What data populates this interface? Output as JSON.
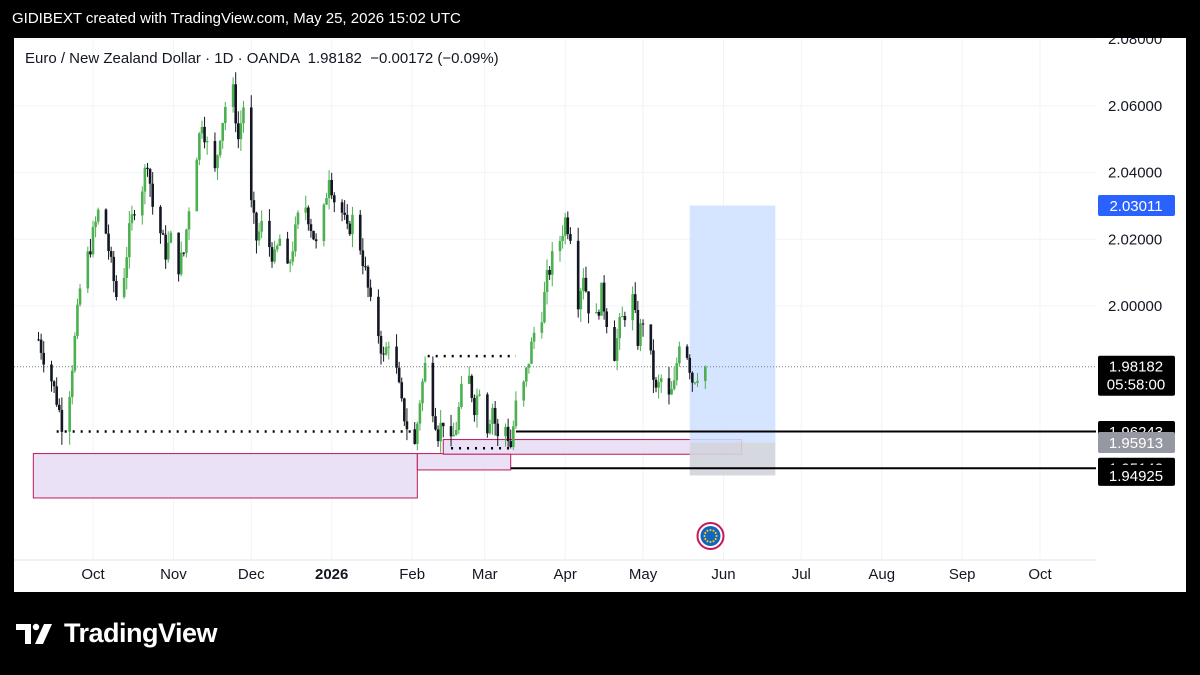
{
  "header": {
    "text": "GIDIBEXT created with TradingView.com, May 25, 2026 15:02 UTC"
  },
  "symbol": {
    "name": "Euro / New Zealand Dollar",
    "interval": "1D",
    "exchange": "OANDA",
    "last": "1.98182",
    "change": "−0.00172",
    "change_pct": "(−0.09%)"
  },
  "brand": {
    "name": "TradingView"
  },
  "colors": {
    "up": "#4caf50",
    "down": "#131722",
    "target_box": "#cfe0ff",
    "target_tag": "#2962ff",
    "zone": "#e8dcf5",
    "zone_border": "#c2185b",
    "neutral_box": "#d1d4dc"
  },
  "chart_data": {
    "type": "candlestick",
    "title": "Euro / New Zealand Dollar · 1D · OANDA",
    "ylim": [
      1.935,
      2.08
    ],
    "y_ticks": [
      "2.08000",
      "2.06000",
      "2.04000",
      "2.02000",
      "2.00000"
    ],
    "x_ticks": [
      "Oct",
      "Nov",
      "Dec",
      "2026",
      "Feb",
      "Mar",
      "Apr",
      "May",
      "Jun",
      "Jul",
      "Aug",
      "Sep",
      "Oct"
    ],
    "x_ticks_bold": [
      "2026"
    ],
    "price_tags": [
      {
        "label": "1.98182",
        "sub": "05:58:00",
        "value": 1.98182,
        "style": "dark"
      },
      {
        "label": "2.03011",
        "value": 2.03011,
        "style": "blue"
      },
      {
        "label": "1.96243",
        "value": 1.96243,
        "style": "dark"
      },
      {
        "label": "1.95913",
        "value": 1.95913,
        "style": "grey"
      },
      {
        "label": "1.95142",
        "value": 1.95142,
        "style": "dark"
      },
      {
        "label": "1.94925",
        "value": 1.94925,
        "style": "dark"
      }
    ],
    "close_path": [
      [
        "2025-09-10",
        1.99
      ],
      [
        "2025-09-12",
        1.985
      ],
      [
        "2025-09-15",
        1.978
      ],
      [
        "2025-09-17",
        1.972
      ],
      [
        "2025-09-19",
        1.965
      ],
      [
        "2025-09-22",
        1.975
      ],
      [
        "2025-09-24",
        1.99
      ],
      [
        "2025-09-26",
        2.005
      ],
      [
        "2025-09-30",
        2.018
      ],
      [
        "2025-10-03",
        2.028
      ],
      [
        "2025-10-06",
        2.022
      ],
      [
        "2025-10-08",
        2.012
      ],
      [
        "2025-10-10",
        2.003
      ],
      [
        "2025-10-13",
        2.01
      ],
      [
        "2025-10-15",
        2.022
      ],
      [
        "2025-10-17",
        2.03
      ],
      [
        "2025-10-20",
        2.036
      ],
      [
        "2025-10-22",
        2.044
      ],
      [
        "2025-10-24",
        2.03
      ],
      [
        "2025-10-27",
        2.022
      ],
      [
        "2025-10-29",
        2.016
      ],
      [
        "2025-10-31",
        2.02
      ],
      [
        "2025-11-03",
        2.012
      ],
      [
        "2025-11-05",
        2.016
      ],
      [
        "2025-11-07",
        2.03
      ],
      [
        "2025-11-10",
        2.046
      ],
      [
        "2025-11-12",
        2.056
      ],
      [
        "2025-11-14",
        2.048
      ],
      [
        "2025-11-17",
        2.04
      ],
      [
        "2025-11-19",
        2.052
      ],
      [
        "2025-11-21",
        2.06
      ],
      [
        "2025-11-24",
        2.064
      ],
      [
        "2025-11-26",
        2.05
      ],
      [
        "2025-11-28",
        2.06
      ],
      [
        "2025-12-01",
        2.03
      ],
      [
        "2025-12-03",
        2.02
      ],
      [
        "2025-12-05",
        2.024
      ],
      [
        "2025-12-08",
        2.018
      ],
      [
        "2025-12-10",
        2.014
      ],
      [
        "2025-12-12",
        2.02
      ],
      [
        "2025-12-15",
        2.01
      ],
      [
        "2025-12-17",
        2.018
      ],
      [
        "2025-12-19",
        2.026
      ],
      [
        "2025-12-22",
        2.03
      ],
      [
        "2025-12-24",
        2.024
      ],
      [
        "2025-12-26",
        2.018
      ],
      [
        "2025-12-29",
        2.028
      ],
      [
        "2025-12-31",
        2.04
      ],
      [
        "2026-01-02",
        2.032
      ],
      [
        "2026-01-05",
        2.028
      ],
      [
        "2026-01-07",
        2.022
      ],
      [
        "2026-01-09",
        2.026
      ],
      [
        "2026-01-12",
        2.018
      ],
      [
        "2026-01-14",
        2.01
      ],
      [
        "2026-01-16",
        2.0
      ],
      [
        "2026-01-19",
        1.992
      ],
      [
        "2026-01-21",
        1.984
      ],
      [
        "2026-01-23",
        1.99
      ],
      [
        "2026-01-26",
        1.98
      ],
      [
        "2026-01-28",
        1.97
      ],
      [
        "2026-01-30",
        1.964
      ],
      [
        "2026-02-02",
        1.958
      ],
      [
        "2026-02-04",
        1.972
      ],
      [
        "2026-02-06",
        1.982
      ],
      [
        "2026-02-09",
        1.97
      ],
      [
        "2026-02-11",
        1.962
      ],
      [
        "2026-02-13",
        1.966
      ],
      [
        "2026-02-16",
        1.958
      ],
      [
        "2026-02-18",
        1.964
      ],
      [
        "2026-02-20",
        1.974
      ],
      [
        "2026-02-23",
        1.978
      ],
      [
        "2026-02-25",
        1.97
      ],
      [
        "2026-02-27",
        1.976
      ],
      [
        "2026-03-02",
        1.964
      ],
      [
        "2026-03-04",
        1.97
      ],
      [
        "2026-03-06",
        1.96
      ],
      [
        "2026-03-09",
        1.964
      ],
      [
        "2026-03-11",
        1.958
      ],
      [
        "2026-03-13",
        1.97
      ],
      [
        "2026-03-16",
        1.976
      ],
      [
        "2026-03-18",
        1.984
      ],
      [
        "2026-03-20",
        1.992
      ],
      [
        "2026-03-23",
        1.998
      ],
      [
        "2026-03-25",
        2.008
      ],
      [
        "2026-03-27",
        2.014
      ],
      [
        "2026-03-30",
        2.02
      ],
      [
        "2026-04-01",
        2.026
      ],
      [
        "2026-04-03",
        2.022
      ],
      [
        "2026-04-06",
        2.002
      ],
      [
        "2026-04-08",
        2.01
      ],
      [
        "2026-04-10",
        2.0
      ],
      [
        "2026-04-13",
        1.996
      ],
      [
        "2026-04-15",
        2.004
      ],
      [
        "2026-04-17",
        1.996
      ],
      [
        "2026-04-20",
        1.986
      ],
      [
        "2026-04-22",
        1.994
      ],
      [
        "2026-04-24",
        1.998
      ],
      [
        "2026-04-27",
        2.002
      ],
      [
        "2026-04-29",
        1.99
      ],
      [
        "2026-05-01",
        1.996
      ],
      [
        "2026-05-04",
        1.984
      ],
      [
        "2026-05-06",
        1.974
      ],
      [
        "2026-05-08",
        1.978
      ],
      [
        "2026-05-11",
        1.972
      ],
      [
        "2026-05-13",
        1.976
      ],
      [
        "2026-05-15",
        1.99
      ],
      [
        "2026-05-18",
        1.986
      ],
      [
        "2026-05-20",
        1.978
      ],
      [
        "2026-05-22",
        1.98
      ],
      [
        "2026-05-25",
        1.98182
      ]
    ],
    "levels": [
      {
        "kind": "dotted",
        "from": "2025-09-17",
        "to": "2026-02-02",
        "value": 1.9624
      },
      {
        "kind": "dotted",
        "from": "2026-02-07",
        "to": "2026-03-13",
        "value": 1.985
      },
      {
        "kind": "dotted",
        "from": "2026-02-16",
        "to": "2026-03-11",
        "value": 1.9574
      },
      {
        "kind": "solid",
        "from": "2026-03-13",
        "to": "2026-12-31",
        "value": 1.96243
      },
      {
        "kind": "solid",
        "from": "2026-03-11",
        "to": "2026-12-31",
        "value": 1.95142
      }
    ],
    "zones": [
      {
        "from": "2025-09-08",
        "to": "2026-02-03",
        "top": 1.9558,
        "bottom": 1.9425
      },
      {
        "from": "2026-02-03",
        "to": "2026-03-11",
        "top": 1.9558,
        "bottom": 1.9509
      },
      {
        "from": "2026-02-13",
        "to": "2026-06-08",
        "top": 1.96,
        "bottom": 1.9556
      }
    ],
    "projection": {
      "from": "2026-05-19",
      "to": "2026-06-21",
      "target": 2.03011,
      "entry": 1.95913,
      "stop": 1.94925
    },
    "current_price": 1.98182,
    "event_marker": {
      "date": "2026-05-27",
      "label": "EU"
    }
  }
}
